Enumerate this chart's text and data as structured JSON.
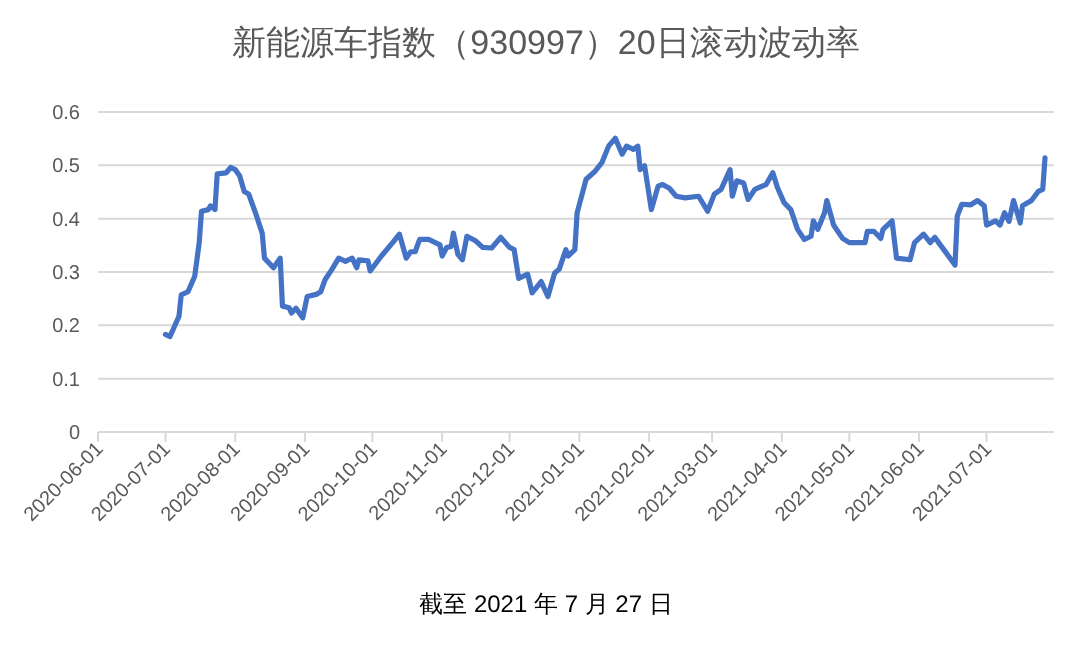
{
  "chart_data": {
    "type": "line",
    "title": "新能源车指数（930997）20日滚动波动率",
    "annotations": [
      "截至 2021 年 7 月 27 日"
    ],
    "x": [
      "2020-07-01",
      "2020-07-03",
      "2020-07-07",
      "2020-07-08",
      "2020-07-11",
      "2020-07-14",
      "2020-07-16",
      "2020-07-17",
      "2020-07-20",
      "2020-07-21",
      "2020-07-23",
      "2020-07-24",
      "2020-07-28",
      "2020-07-30",
      "2020-08-01",
      "2020-08-03",
      "2020-08-05",
      "2020-08-07",
      "2020-08-10",
      "2020-08-13",
      "2020-08-14",
      "2020-08-18",
      "2020-08-21",
      "2020-08-22",
      "2020-08-25",
      "2020-08-26",
      "2020-08-28",
      "2020-08-31",
      "2020-09-02",
      "2020-09-06",
      "2020-09-08",
      "2020-09-10",
      "2020-09-13",
      "2020-09-16",
      "2020-09-19",
      "2020-09-22",
      "2020-09-24",
      "2020-09-25",
      "2020-09-29",
      "2020-09-30",
      "2020-10-05",
      "2020-10-10",
      "2020-10-13",
      "2020-10-16",
      "2020-10-18",
      "2020-10-20",
      "2020-10-22",
      "2020-10-26",
      "2020-10-31",
      "2020-11-01",
      "2020-11-03",
      "2020-11-05",
      "2020-11-06",
      "2020-11-08",
      "2020-11-10",
      "2020-11-12",
      "2020-11-16",
      "2020-11-19",
      "2020-11-23",
      "2020-11-27",
      "2020-12-01",
      "2020-12-03",
      "2020-12-05",
      "2020-12-09",
      "2020-12-11",
      "2020-12-15",
      "2020-12-18",
      "2020-12-21",
      "2020-12-23",
      "2020-12-26",
      "2020-12-27",
      "2020-12-30",
      "2020-12-31",
      "2021-01-04",
      "2021-01-08",
      "2021-01-11",
      "2021-01-14",
      "2021-01-17",
      "2021-01-20",
      "2021-01-22",
      "2021-01-25",
      "2021-01-27",
      "2021-01-28",
      "2021-01-30",
      "2021-02-02",
      "2021-02-05",
      "2021-02-07",
      "2021-02-10",
      "2021-02-13",
      "2021-02-17",
      "2021-02-23",
      "2021-02-27",
      "2021-03-02",
      "2021-03-05",
      "2021-03-09",
      "2021-03-10",
      "2021-03-12",
      "2021-03-15",
      "2021-03-17",
      "2021-03-20",
      "2021-03-25",
      "2021-03-28",
      "2021-03-30",
      "2021-04-02",
      "2021-04-05",
      "2021-04-08",
      "2021-04-11",
      "2021-04-14",
      "2021-04-15",
      "2021-04-17",
      "2021-04-20",
      "2021-04-21",
      "2021-04-24",
      "2021-04-28",
      "2021-05-01",
      "2021-05-08",
      "2021-05-09",
      "2021-05-12",
      "2021-05-15",
      "2021-05-16",
      "2021-05-20",
      "2021-05-22",
      "2021-05-28",
      "2021-05-30",
      "2021-06-03",
      "2021-06-06",
      "2021-06-08",
      "2021-06-12",
      "2021-06-17",
      "2021-06-18",
      "2021-06-20",
      "2021-06-24",
      "2021-06-27",
      "2021-06-30",
      "2021-07-01",
      "2021-07-05",
      "2021-07-07",
      "2021-07-09",
      "2021-07-11",
      "2021-07-13",
      "2021-07-16",
      "2021-07-17",
      "2021-07-21",
      "2021-07-24",
      "2021-07-26",
      "2021-07-27"
    ],
    "series": [
      {
        "color": "#4472c4",
        "values": [
          0.183,
          0.179,
          0.217,
          0.257,
          0.263,
          0.292,
          0.355,
          0.414,
          0.417,
          0.424,
          0.417,
          0.484,
          0.486,
          0.496,
          0.492,
          0.48,
          0.451,
          0.446,
          0.411,
          0.373,
          0.326,
          0.308,
          0.326,
          0.236,
          0.233,
          0.223,
          0.232,
          0.214,
          0.254,
          0.258,
          0.263,
          0.286,
          0.305,
          0.326,
          0.32,
          0.326,
          0.308,
          0.323,
          0.321,
          0.302,
          0.33,
          0.355,
          0.371,
          0.326,
          0.338,
          0.338,
          0.361,
          0.361,
          0.351,
          0.33,
          0.346,
          0.348,
          0.373,
          0.333,
          0.323,
          0.367,
          0.358,
          0.346,
          0.345,
          0.365,
          0.346,
          0.342,
          0.288,
          0.296,
          0.261,
          0.282,
          0.254,
          0.298,
          0.305,
          0.342,
          0.33,
          0.342,
          0.411,
          0.474,
          0.489,
          0.505,
          0.536,
          0.551,
          0.521,
          0.536,
          0.53,
          0.536,
          0.492,
          0.499,
          0.417,
          0.461,
          0.464,
          0.457,
          0.442,
          0.439,
          0.442,
          0.414,
          0.446,
          0.455,
          0.492,
          0.442,
          0.471,
          0.467,
          0.436,
          0.455,
          0.464,
          0.486,
          0.459,
          0.43,
          0.417,
          0.38,
          0.361,
          0.367,
          0.396,
          0.38,
          0.411,
          0.434,
          0.388,
          0.363,
          0.355,
          0.355,
          0.376,
          0.376,
          0.363,
          0.38,
          0.396,
          0.326,
          0.323,
          0.355,
          0.371,
          0.355,
          0.365,
          0.342,
          0.313,
          0.405,
          0.427,
          0.426,
          0.434,
          0.424,
          0.388,
          0.396,
          0.388,
          0.411,
          0.395,
          0.434,
          0.392,
          0.424,
          0.434,
          0.451,
          0.455,
          0.514
        ]
      }
    ],
    "xlim": [
      "2020-06-01",
      "2021-07-31"
    ],
    "xticks": [
      "2020-06-01",
      "2020-07-01",
      "2020-08-01",
      "2020-09-01",
      "2020-10-01",
      "2020-11-01",
      "2020-12-01",
      "2021-01-01",
      "2021-02-01",
      "2021-03-01",
      "2021-04-01",
      "2021-05-01",
      "2021-06-01",
      "2021-07-01"
    ],
    "ylim": [
      0,
      0.6
    ],
    "yticks": [
      0,
      0.1,
      0.2,
      0.3,
      0.4,
      0.5,
      0.6
    ],
    "grid": "y",
    "marker": "none",
    "line_style": "solid"
  }
}
